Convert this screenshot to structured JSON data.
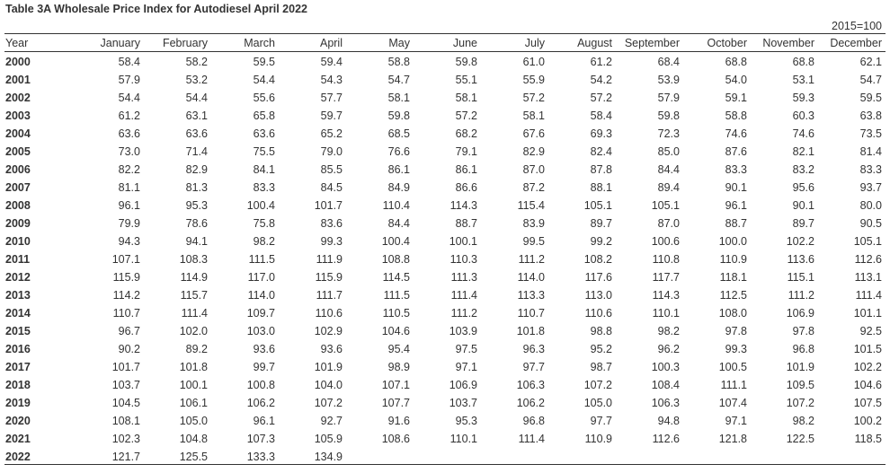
{
  "title": "Table 3A Wholesale Price Index for Autodiesel April 2022",
  "unit_note": "2015=100",
  "table": {
    "header": [
      "Year",
      "January",
      "February",
      "March",
      "April",
      "May",
      "June",
      "July",
      "August",
      "September",
      "October",
      "November",
      "December"
    ],
    "rows": [
      [
        "2000",
        "58.4",
        "58.2",
        "59.5",
        "59.4",
        "58.8",
        "59.8",
        "61.0",
        "61.2",
        "68.4",
        "68.8",
        "68.8",
        "62.1"
      ],
      [
        "2001",
        "57.9",
        "53.2",
        "54.4",
        "54.3",
        "54.7",
        "55.1",
        "55.9",
        "54.2",
        "53.9",
        "54.0",
        "53.1",
        "54.7"
      ],
      [
        "2002",
        "54.4",
        "54.4",
        "55.6",
        "57.7",
        "58.1",
        "58.1",
        "57.2",
        "57.2",
        "57.9",
        "59.1",
        "59.3",
        "59.5"
      ],
      [
        "2003",
        "61.2",
        "63.1",
        "65.8",
        "59.7",
        "59.8",
        "57.2",
        "58.1",
        "58.4",
        "59.8",
        "58.8",
        "60.3",
        "63.8"
      ],
      [
        "2004",
        "63.6",
        "63.6",
        "63.6",
        "65.2",
        "68.5",
        "68.2",
        "67.6",
        "69.3",
        "72.3",
        "74.6",
        "74.6",
        "73.5"
      ],
      [
        "2005",
        "73.0",
        "71.4",
        "75.5",
        "79.0",
        "76.6",
        "79.1",
        "82.9",
        "82.4",
        "85.0",
        "87.6",
        "82.1",
        "81.4"
      ],
      [
        "2006",
        "82.2",
        "82.9",
        "84.1",
        "85.5",
        "86.1",
        "86.1",
        "87.0",
        "87.8",
        "84.4",
        "83.3",
        "83.2",
        "83.3"
      ],
      [
        "2007",
        "81.1",
        "81.3",
        "83.3",
        "84.5",
        "84.9",
        "86.6",
        "87.2",
        "88.1",
        "89.4",
        "90.1",
        "95.6",
        "93.7"
      ],
      [
        "2008",
        "96.1",
        "95.3",
        "100.4",
        "101.7",
        "110.4",
        "114.3",
        "115.4",
        "105.1",
        "105.1",
        "96.1",
        "90.1",
        "80.0"
      ],
      [
        "2009",
        "79.9",
        "78.6",
        "75.8",
        "83.6",
        "84.4",
        "88.7",
        "83.9",
        "89.7",
        "87.0",
        "88.7",
        "89.7",
        "90.5"
      ],
      [
        "2010",
        "94.3",
        "94.1",
        "98.2",
        "99.3",
        "100.4",
        "100.1",
        "99.5",
        "99.2",
        "100.6",
        "100.0",
        "102.2",
        "105.1"
      ],
      [
        "2011",
        "107.1",
        "108.3",
        "111.5",
        "111.9",
        "108.8",
        "110.3",
        "111.2",
        "108.2",
        "110.8",
        "110.9",
        "113.6",
        "112.6"
      ],
      [
        "2012",
        "115.9",
        "114.9",
        "117.0",
        "115.9",
        "114.5",
        "111.3",
        "114.0",
        "117.6",
        "117.7",
        "118.1",
        "115.1",
        "113.1"
      ],
      [
        "2013",
        "114.2",
        "115.7",
        "114.0",
        "111.7",
        "111.5",
        "111.4",
        "113.3",
        "113.0",
        "114.3",
        "112.5",
        "111.2",
        "111.4"
      ],
      [
        "2014",
        "110.7",
        "111.4",
        "109.7",
        "110.6",
        "110.5",
        "111.2",
        "110.7",
        "110.6",
        "110.1",
        "108.0",
        "106.9",
        "101.1"
      ],
      [
        "2015",
        "96.7",
        "102.0",
        "103.0",
        "102.9",
        "104.6",
        "103.9",
        "101.8",
        "98.8",
        "98.2",
        "97.8",
        "97.8",
        "92.5"
      ],
      [
        "2016",
        "90.2",
        "89.2",
        "93.6",
        "93.6",
        "95.4",
        "97.5",
        "96.3",
        "95.2",
        "96.2",
        "99.3",
        "96.8",
        "101.5"
      ],
      [
        "2017",
        "101.7",
        "101.8",
        "99.7",
        "101.9",
        "98.9",
        "97.1",
        "97.7",
        "98.7",
        "100.3",
        "100.5",
        "101.9",
        "102.2"
      ],
      [
        "2018",
        "103.7",
        "100.1",
        "100.8",
        "104.0",
        "107.1",
        "106.9",
        "106.3",
        "107.2",
        "108.4",
        "111.1",
        "109.5",
        "104.6"
      ],
      [
        "2019",
        "104.5",
        "106.1",
        "106.2",
        "107.2",
        "107.7",
        "103.7",
        "106.2",
        "105.0",
        "106.3",
        "107.4",
        "107.2",
        "107.5"
      ],
      [
        "2020",
        "108.1",
        "105.0",
        "96.1",
        "92.7",
        "91.6",
        "95.3",
        "96.8",
        "97.7",
        "94.8",
        "97.1",
        "98.2",
        "100.2"
      ],
      [
        "2021",
        "102.3",
        "104.8",
        "107.3",
        "105.9",
        "108.6",
        "110.1",
        "111.4",
        "110.9",
        "112.6",
        "121.8",
        "122.5",
        "118.5"
      ],
      [
        "2022",
        "121.7",
        "125.5",
        "133.3",
        "134.9"
      ]
    ]
  }
}
